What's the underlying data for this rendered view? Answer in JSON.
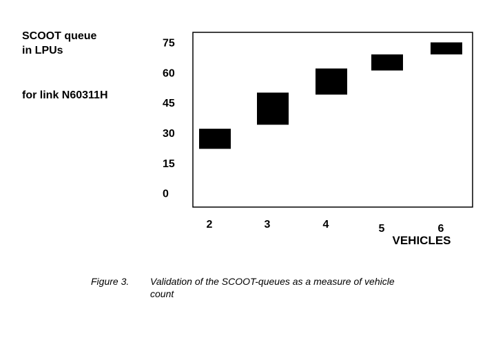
{
  "chart_data": {
    "type": "bar",
    "title": "",
    "ylabel_line1": "SCOOT queue",
    "ylabel_line2": "in LPUs",
    "subtitle": "for link N60311H",
    "xlabel": "VEHICLES",
    "categories": [
      "2",
      "3",
      "4",
      "5",
      "6"
    ],
    "ranges": [
      {
        "x": "2",
        "low": 22,
        "high": 32
      },
      {
        "x": "3",
        "low": 34,
        "high": 50
      },
      {
        "x": "4",
        "low": 49,
        "high": 62
      },
      {
        "x": "5",
        "low": 61,
        "high": 69
      },
      {
        "x": "6",
        "low": 69,
        "high": 75
      }
    ],
    "yticks": [
      0,
      15,
      30,
      45,
      60,
      75
    ],
    "ylim": [
      -7,
      80
    ],
    "grid": false,
    "legend": "none",
    "color": "#000000"
  },
  "caption": {
    "number": "Figure 3.",
    "text": "Validation of the SCOOT-queues as a measure of vehicle count"
  }
}
